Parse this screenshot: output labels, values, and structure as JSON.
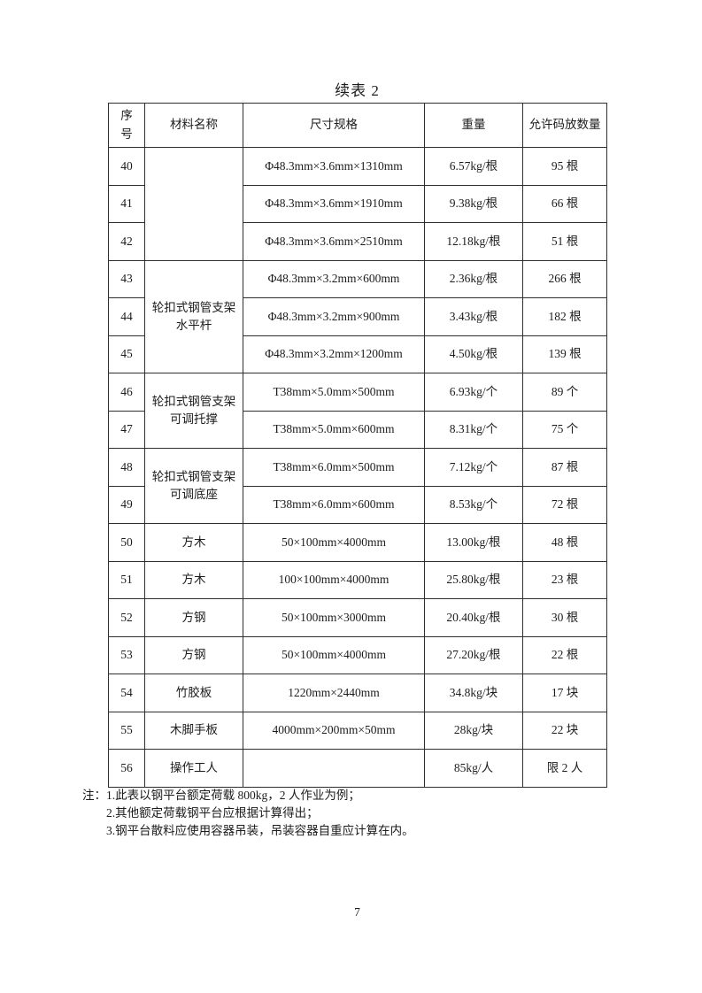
{
  "page": {
    "title": "续表 2",
    "page_number": "7"
  },
  "table": {
    "headers": [
      {
        "lines": [
          "序",
          "号"
        ]
      },
      {
        "lines": [
          "材料名称"
        ]
      },
      {
        "lines": [
          "尺寸规格"
        ]
      },
      {
        "lines": [
          "重量"
        ]
      },
      {
        "lines": [
          "允许码放数量"
        ]
      }
    ],
    "rows": [
      {
        "no": "40",
        "material": {
          "lines": [],
          "span": 3
        },
        "size": "Φ48.3mm×3.6mm×1310mm",
        "weight": "6.57kg/根",
        "qty": "95 根"
      },
      {
        "no": "41",
        "size": "Φ48.3mm×3.6mm×1910mm",
        "weight": "9.38kg/根",
        "qty": "66 根"
      },
      {
        "no": "42",
        "size": "Φ48.3mm×3.6mm×2510mm",
        "weight": "12.18kg/根",
        "qty": "51 根"
      },
      {
        "no": "43",
        "material": {
          "lines": [
            "轮扣式钢管支架",
            "水平杆"
          ],
          "span": 3
        },
        "size": "Φ48.3mm×3.2mm×600mm",
        "weight": "2.36kg/根",
        "qty": "266 根"
      },
      {
        "no": "44",
        "size": "Φ48.3mm×3.2mm×900mm",
        "weight": "3.43kg/根",
        "qty": "182 根"
      },
      {
        "no": "45",
        "size": "Φ48.3mm×3.2mm×1200mm",
        "weight": "4.50kg/根",
        "qty": "139 根"
      },
      {
        "no": "46",
        "material": {
          "lines": [
            "轮扣式钢管支架",
            "可调托撑"
          ],
          "span": 2
        },
        "size": "T38mm×5.0mm×500mm",
        "weight": "6.93kg/个",
        "qty": "89 个"
      },
      {
        "no": "47",
        "size": "T38mm×5.0mm×600mm",
        "weight": "8.31kg/个",
        "qty": "75 个"
      },
      {
        "no": "48",
        "material": {
          "lines": [
            "轮扣式钢管支架",
            "可调底座"
          ],
          "span": 2
        },
        "size": "T38mm×6.0mm×500mm",
        "weight": "7.12kg/个",
        "qty": "87 根"
      },
      {
        "no": "49",
        "size": "T38mm×6.0mm×600mm",
        "weight": "8.53kg/个",
        "qty": "72 根"
      },
      {
        "no": "50",
        "material": {
          "lines": [
            "方木"
          ],
          "span": 1
        },
        "size": "50×100mm×4000mm",
        "weight": "13.00kg/根",
        "qty": "48 根"
      },
      {
        "no": "51",
        "material": {
          "lines": [
            "方木"
          ],
          "span": 1
        },
        "size": "100×100mm×4000mm",
        "weight": "25.80kg/根",
        "qty": "23 根"
      },
      {
        "no": "52",
        "material": {
          "lines": [
            "方钢"
          ],
          "span": 1
        },
        "size": "50×100mm×3000mm",
        "weight": "20.40kg/根",
        "qty": "30 根"
      },
      {
        "no": "53",
        "material": {
          "lines": [
            "方钢"
          ],
          "span": 1
        },
        "size": "50×100mm×4000mm",
        "weight": "27.20kg/根",
        "qty": "22 根"
      },
      {
        "no": "54",
        "material": {
          "lines": [
            "竹胶板"
          ],
          "span": 1
        },
        "size": "1220mm×2440mm",
        "weight": "34.8kg/块",
        "qty": "17 块"
      },
      {
        "no": "55",
        "material": {
          "lines": [
            "木脚手板"
          ],
          "span": 1
        },
        "size": "4000mm×200mm×50mm",
        "weight": "28kg/块",
        "qty": "22 块"
      },
      {
        "no": "56",
        "material": {
          "lines": [
            "操作工人"
          ],
          "span": 1
        },
        "size": "",
        "weight": "85kg/人",
        "qty": "限 2 人"
      }
    ]
  },
  "notes": {
    "label": "注：",
    "items": [
      "1.此表以钢平台额定荷载 800kg，2 人作业为例；",
      "2.其他额定荷载钢平台应根据计算得出；",
      "3.钢平台散料应使用容器吊装，吊装容器自重应计算在内。"
    ]
  }
}
